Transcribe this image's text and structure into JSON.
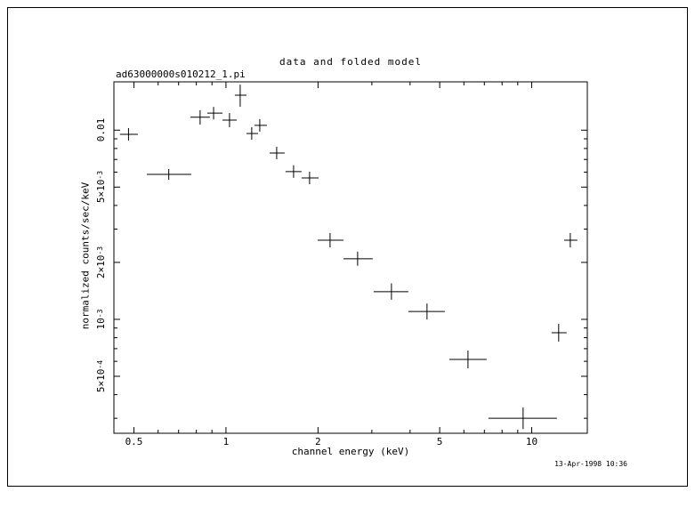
{
  "timestamp": "13-Apr-1998 10:36",
  "colors": {
    "foreground": "#000000",
    "background": "#ffffff"
  },
  "chart_data": {
    "type": "scatter",
    "marker": "cross-with-error-bars",
    "color": "#000000",
    "title": "data and folded model",
    "dataset_label": "ad63000000s010212_1.pi",
    "xlabel": "channel energy (keV)",
    "ylabel": "normalized counts/sec/keV",
    "xscale": "log",
    "yscale": "log",
    "grid": false,
    "legend": false,
    "xlim": [
      0.43,
      15.2
    ],
    "ylim": [
      0.00025,
      0.018
    ],
    "x_ticks": [
      {
        "value": 0.5,
        "label": "0.5"
      },
      {
        "value": 1,
        "label": "1"
      },
      {
        "value": 2,
        "label": "2"
      },
      {
        "value": 5,
        "label": "5"
      },
      {
        "value": 10,
        "label": "10"
      }
    ],
    "y_ticks": [
      {
        "value": 0.01,
        "mantissa": "0.01",
        "exp": ""
      },
      {
        "value": 0.005,
        "mantissa": "5×10",
        "exp": "-3"
      },
      {
        "value": 0.002,
        "mantissa": "2×10",
        "exp": "-3"
      },
      {
        "value": 0.001,
        "mantissa": "10",
        "exp": "-3"
      },
      {
        "value": 0.0005,
        "mantissa": "5×10",
        "exp": "-4"
      }
    ],
    "points": [
      {
        "x": 0.48,
        "xlo": 0.45,
        "xhi": 0.515,
        "y": 0.0095,
        "ylo": 0.0088,
        "yhi": 0.01025
      },
      {
        "x": 0.65,
        "xlo": 0.551,
        "xhi": 0.77,
        "y": 0.00584,
        "ylo": 0.00547,
        "yhi": 0.00623
      },
      {
        "x": 0.823,
        "xlo": 0.765,
        "xhi": 0.886,
        "y": 0.0117,
        "ylo": 0.0107,
        "yhi": 0.01275
      },
      {
        "x": 0.911,
        "xlo": 0.869,
        "xhi": 0.974,
        "y": 0.0123,
        "ylo": 0.0114,
        "yhi": 0.01327
      },
      {
        "x": 1.027,
        "xlo": 0.974,
        "xhi": 1.084,
        "y": 0.0113,
        "ylo": 0.01037,
        "yhi": 0.01232
      },
      {
        "x": 1.113,
        "xlo": 1.069,
        "xhi": 1.167,
        "y": 0.0153,
        "ylo": 0.0133,
        "yhi": 0.0174
      },
      {
        "x": 1.214,
        "xlo": 1.167,
        "xhi": 1.273,
        "y": 0.0096,
        "ylo": 0.0089,
        "yhi": 0.01036
      },
      {
        "x": 1.29,
        "xlo": 1.239,
        "xhi": 1.361,
        "y": 0.0106,
        "ylo": 0.00983,
        "yhi": 0.01144
      },
      {
        "x": 1.465,
        "xlo": 1.389,
        "xhi": 1.556,
        "y": 0.00757,
        "ylo": 0.00702,
        "yhi": 0.00817
      },
      {
        "x": 1.664,
        "xlo": 1.566,
        "xhi": 1.767,
        "y": 0.00604,
        "ylo": 0.0056,
        "yhi": 0.00652
      },
      {
        "x": 1.877,
        "xlo": 1.767,
        "xhi": 2.008,
        "y": 0.00559,
        "ylo": 0.00518,
        "yhi": 0.00603
      },
      {
        "x": 2.19,
        "xlo": 1.994,
        "xhi": 2.422,
        "y": 0.00262,
        "ylo": 0.0024,
        "yhi": 0.00286
      },
      {
        "x": 2.695,
        "xlo": 2.422,
        "xhi": 3.02,
        "y": 0.00209,
        "ylo": 0.00192,
        "yhi": 0.00228
      },
      {
        "x": 3.477,
        "xlo": 3.04,
        "xhi": 3.948,
        "y": 0.0014,
        "ylo": 0.00127,
        "yhi": 0.00155
      },
      {
        "x": 4.545,
        "xlo": 3.95,
        "xhi": 5.197,
        "y": 0.0011,
        "ylo": 0.000998,
        "yhi": 0.001213
      },
      {
        "x": 6.187,
        "xlo": 5.374,
        "xhi": 7.12,
        "y": 0.000614,
        "ylo": 0.000551,
        "yhi": 0.000684
      },
      {
        "x": 9.372,
        "xlo": 7.217,
        "xhi": 12.09,
        "y": 0.0003,
        "ylo": 0.000263,
        "yhi": 0.000342
      },
      {
        "x": 12.25,
        "xlo": 11.61,
        "xhi": 13.01,
        "y": 0.00085,
        "ylo": 0.000763,
        "yhi": 0.000947
      },
      {
        "x": 13.37,
        "xlo": 12.76,
        "xhi": 14.1,
        "y": 0.00262,
        "ylo": 0.0024,
        "yhi": 0.00286
      }
    ]
  }
}
